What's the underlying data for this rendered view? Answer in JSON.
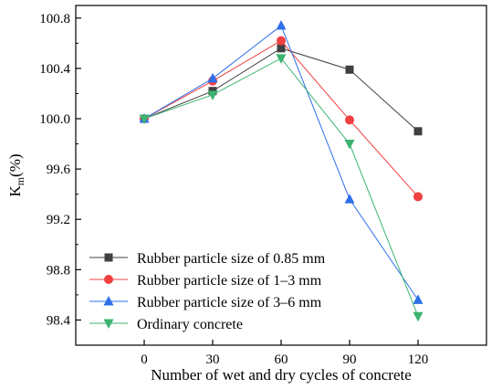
{
  "chart_data": {
    "type": "line",
    "xlabel": "Number of wet and dry cycles of concrete",
    "ylabel": "K",
    "ylabel_sub": "m",
    "ylabel_suffix": "(%)",
    "x": [
      0,
      30,
      60,
      90,
      120
    ],
    "x_ticks": [
      "0",
      "30",
      "60",
      "90",
      "120"
    ],
    "xlim": [
      -30,
      150
    ],
    "ylim": [
      98.2,
      100.9
    ],
    "y_ticks": [
      "98.4",
      "98.8",
      "99.2",
      "99.6",
      "100.0",
      "100.4",
      "100.8"
    ],
    "grid": false,
    "legend_position": "bottom-left",
    "series": [
      {
        "name": "Rubber particle size of 0.85 mm",
        "color": "#404040",
        "marker": "square",
        "values": [
          100.0,
          100.22,
          100.56,
          100.39,
          99.9
        ]
      },
      {
        "name": "Rubber particle size of 1–3  mm",
        "color": "#f24040",
        "marker": "circle",
        "values": [
          100.0,
          100.3,
          100.62,
          99.99,
          99.38
        ]
      },
      {
        "name": "Rubber particle size of 3–6  mm",
        "color": "#2f6fe8",
        "marker": "triangle-up",
        "values": [
          100.0,
          100.32,
          100.74,
          99.36,
          98.56
        ]
      },
      {
        "name": "Ordinary concrete",
        "color": "#3cb371",
        "marker": "triangle-down",
        "values": [
          100.0,
          100.19,
          100.48,
          99.8,
          98.43
        ]
      }
    ]
  }
}
